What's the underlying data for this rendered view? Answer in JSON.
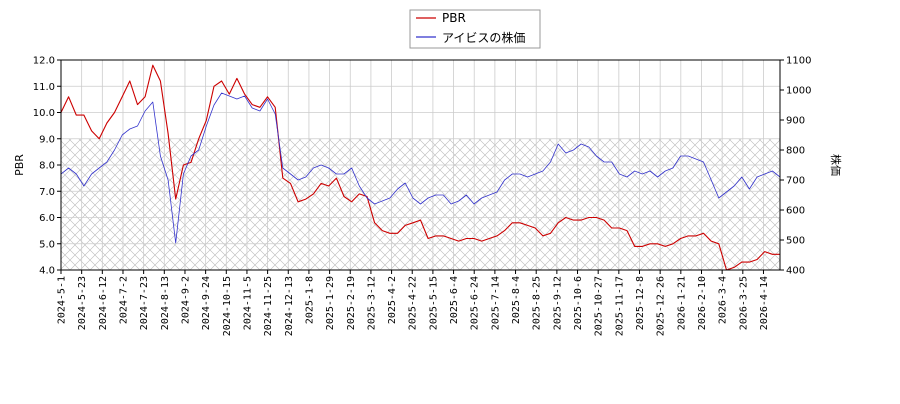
{
  "chart_data": {
    "type": "line",
    "legend": {
      "placement": "top-center",
      "entries": [
        "PBR",
        "アイビスの株価"
      ]
    },
    "grid": true,
    "hatched_band": {
      "axis": "left",
      "from": 4.0,
      "to": 9.0
    },
    "x_tick_labels": [
      "2024-5-1",
      "2024-5-23",
      "2024-6-12",
      "2024-7-2",
      "2024-7-23",
      "2024-8-13",
      "2024-9-2",
      "2024-9-24",
      "2024-10-15",
      "2024-11-5",
      "2024-11-25",
      "2024-12-13",
      "2025-1-8",
      "2025-1-29",
      "2025-2-19",
      "2025-3-12",
      "2025-4-2",
      "2025-4-22",
      "2025-5-15",
      "2025-6-4",
      "2025-6-24",
      "2025-7-14",
      "2025-8-4",
      "2025-8-25",
      "2025-9-12",
      "2025-10-6",
      "2025-10-27",
      "2025-11-17",
      "2025-12-8",
      "2025-12-26",
      "2026-1-21",
      "2026-2-10",
      "2026-3-4",
      "2026-3-25",
      "2026-4-14"
    ],
    "left_axis": {
      "label": "PBR",
      "ylim": [
        4.0,
        12.0
      ],
      "ticks": [
        "4.0",
        "5.0",
        "6.0",
        "7.0",
        "8.0",
        "9.0",
        "10.0",
        "11.0",
        "12.0"
      ]
    },
    "right_axis": {
      "label": "株価",
      "ylim": [
        400,
        1100
      ],
      "ticks": [
        "400",
        "500",
        "600",
        "700",
        "800",
        "900",
        "1000",
        "1100"
      ]
    },
    "series": [
      {
        "name": "PBR",
        "axis": "left",
        "color": "#cc0000",
        "values": [
          10.0,
          10.6,
          9.9,
          9.9,
          9.3,
          9.0,
          9.6,
          10.0,
          10.6,
          11.2,
          10.3,
          10.6,
          11.8,
          11.2,
          9.2,
          6.7,
          8.0,
          8.1,
          9.0,
          9.7,
          11.0,
          11.2,
          10.7,
          11.3,
          10.7,
          10.3,
          10.2,
          10.6,
          10.2,
          7.5,
          7.3,
          6.6,
          6.7,
          6.9,
          7.3,
          7.2,
          7.5,
          6.8,
          6.6,
          6.9,
          6.8,
          5.8,
          5.5,
          5.4,
          5.4,
          5.7,
          5.8,
          5.9,
          5.2,
          5.3,
          5.3,
          5.2,
          5.1,
          5.2,
          5.2,
          5.1,
          5.2,
          5.3,
          5.5,
          5.8,
          5.8,
          5.7,
          5.6,
          5.3,
          5.4,
          5.8,
          6.0,
          5.9,
          5.9,
          6.0,
          6.0,
          5.9,
          5.6,
          5.6,
          5.5,
          4.9,
          4.9,
          5.0,
          5.0,
          4.9,
          5.0,
          5.2,
          5.3,
          5.3,
          5.4,
          5.1,
          5.0,
          4.0,
          4.1,
          4.3,
          4.3,
          4.4,
          4.7,
          4.6,
          4.6
        ]
      },
      {
        "name": "アイビスの株価",
        "axis": "right",
        "color": "#3333cc",
        "values": [
          720,
          740,
          720,
          680,
          720,
          740,
          760,
          800,
          850,
          870,
          880,
          930,
          960,
          780,
          700,
          490,
          720,
          780,
          800,
          880,
          950,
          990,
          980,
          970,
          980,
          940,
          930,
          970,
          920,
          740,
          720,
          700,
          710,
          740,
          750,
          740,
          720,
          720,
          740,
          680,
          640,
          620,
          630,
          640,
          670,
          690,
          640,
          620,
          640,
          650,
          650,
          620,
          630,
          650,
          620,
          640,
          650,
          660,
          700,
          720,
          720,
          710,
          720,
          730,
          760,
          820,
          790,
          800,
          820,
          810,
          780,
          760,
          760,
          720,
          710,
          730,
          720,
          730,
          710,
          730,
          740,
          780,
          780,
          770,
          760,
          700,
          640,
          660,
          680,
          710,
          670,
          710,
          720,
          730,
          710
        ]
      }
    ]
  }
}
